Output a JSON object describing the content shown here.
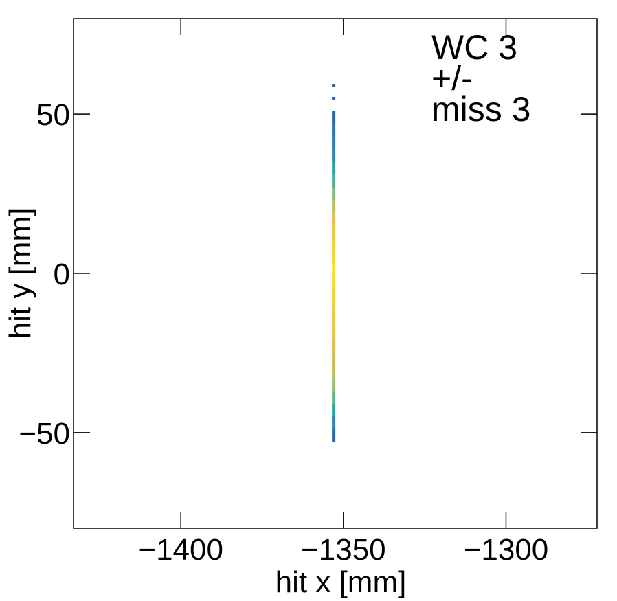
{
  "chart_data": {
    "type": "heatmap",
    "title": "",
    "xlabel": "hit x [mm]",
    "ylabel": "hit y [mm]",
    "xlim": [
      -1433,
      -1272
    ],
    "ylim": [
      -80,
      80
    ],
    "x_ticks": [
      -1400,
      -1350,
      -1300
    ],
    "x_tick_labels": [
      "−1400",
      "−1350",
      "−1300"
    ],
    "y_ticks": [
      -50,
      0,
      50
    ],
    "y_tick_labels": [
      "−50",
      "0",
      "50"
    ],
    "annotation": [
      "WC 3",
      "+/-",
      "miss 3"
    ],
    "grid": false,
    "colormap": [
      "#1f3a9c",
      "#1f7fbf",
      "#20b3a8",
      "#8ec36a",
      "#e6be3c",
      "#f6d21e",
      "#ffeb00"
    ],
    "bins": [
      {
        "x": -1353,
        "y": 59,
        "intensity": 0.1
      },
      {
        "x": -1353,
        "y": 55,
        "intensity": 0.1
      },
      {
        "x": -1353,
        "y": 49,
        "intensity": 0.12
      },
      {
        "x": -1353,
        "y": 45,
        "intensity": 0.15
      },
      {
        "x": -1353,
        "y": 41,
        "intensity": 0.18
      },
      {
        "x": -1353,
        "y": 37,
        "intensity": 0.22
      },
      {
        "x": -1353,
        "y": 33,
        "intensity": 0.3
      },
      {
        "x": -1353,
        "y": 29,
        "intensity": 0.38
      },
      {
        "x": -1353,
        "y": 25,
        "intensity": 0.48
      },
      {
        "x": -1353,
        "y": 21,
        "intensity": 0.6
      },
      {
        "x": -1353,
        "y": 17,
        "intensity": 0.7
      },
      {
        "x": -1353,
        "y": 13,
        "intensity": 0.78
      },
      {
        "x": -1353,
        "y": 9,
        "intensity": 0.84
      },
      {
        "x": -1353,
        "y": 5,
        "intensity": 0.9
      },
      {
        "x": -1353,
        "y": 1,
        "intensity": 0.97
      },
      {
        "x": -1353,
        "y": -3,
        "intensity": 0.92
      },
      {
        "x": -1353,
        "y": -7,
        "intensity": 0.86
      },
      {
        "x": -1353,
        "y": -11,
        "intensity": 0.82
      },
      {
        "x": -1353,
        "y": -15,
        "intensity": 0.78
      },
      {
        "x": -1353,
        "y": -19,
        "intensity": 0.72
      },
      {
        "x": -1353,
        "y": -23,
        "intensity": 0.66
      },
      {
        "x": -1353,
        "y": -27,
        "intensity": 0.62
      },
      {
        "x": -1353,
        "y": -31,
        "intensity": 0.6
      },
      {
        "x": -1353,
        "y": -35,
        "intensity": 0.52
      },
      {
        "x": -1353,
        "y": -39,
        "intensity": 0.42
      },
      {
        "x": -1353,
        "y": -43,
        "intensity": 0.3
      },
      {
        "x": -1353,
        "y": -47,
        "intensity": 0.2
      },
      {
        "x": -1353,
        "y": -51,
        "intensity": 0.12
      }
    ],
    "bin_size": {
      "x": 1,
      "y": 4
    }
  }
}
